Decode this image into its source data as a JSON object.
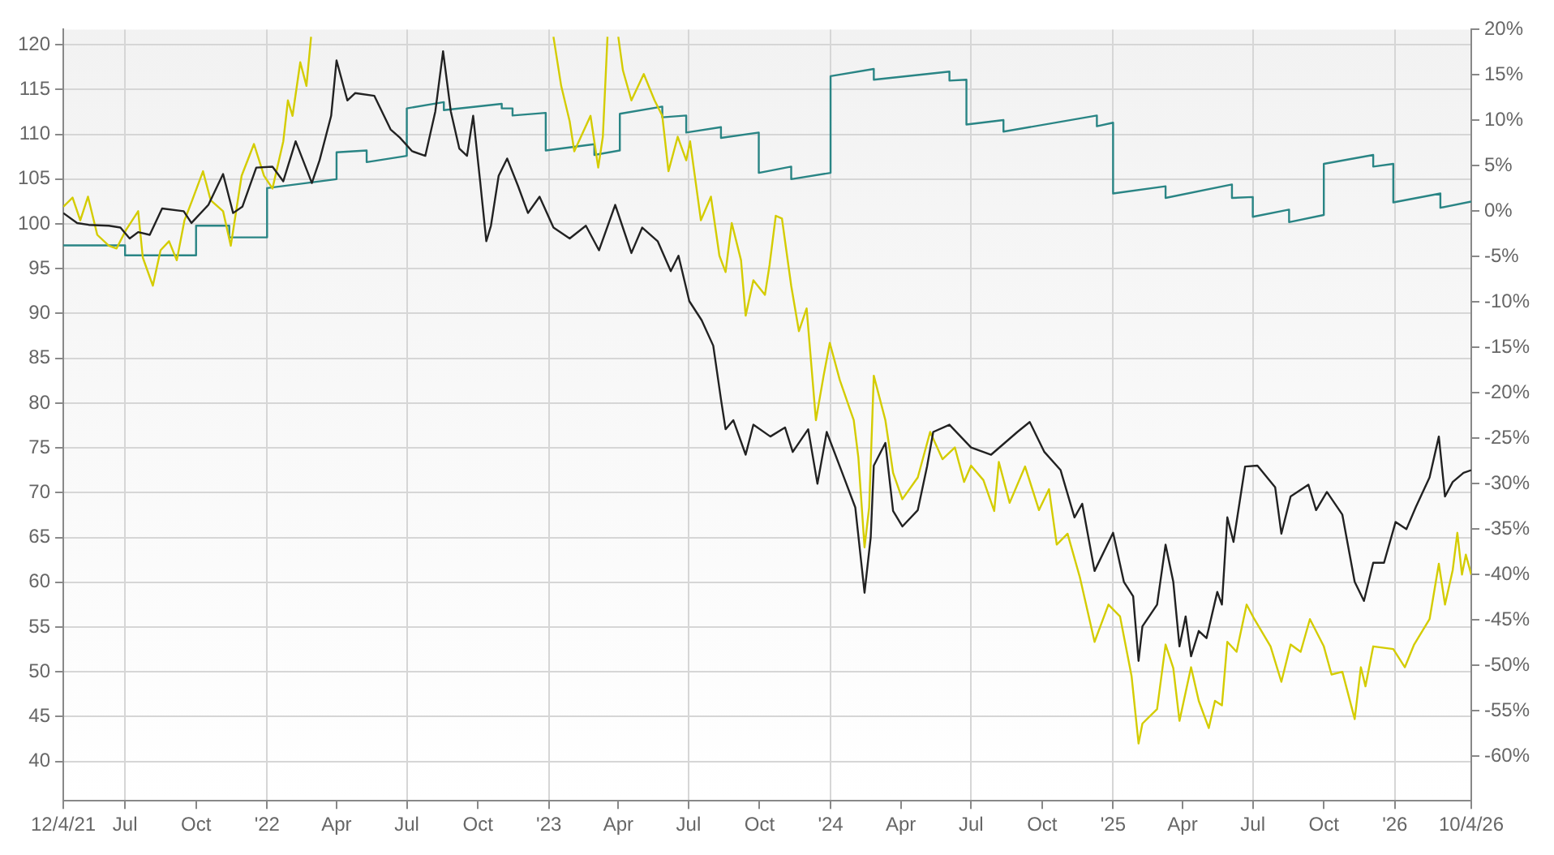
{
  "chart_data": {
    "type": "line",
    "xlim": [
      "2021-04-12",
      "2026-04-10"
    ],
    "xticks": [
      {
        "value": "2021-04-12",
        "label": "12/4/21"
      },
      {
        "value": "2021-07-01",
        "label": "Jul"
      },
      {
        "value": "2021-10-01",
        "label": "Oct"
      },
      {
        "value": "2022-01-01",
        "label": "'22"
      },
      {
        "value": "2022-04-01",
        "label": "Apr"
      },
      {
        "value": "2022-07-01",
        "label": "Jul"
      },
      {
        "value": "2022-10-01",
        "label": "Oct"
      },
      {
        "value": "2023-01-01",
        "label": "'23"
      },
      {
        "value": "2023-04-01",
        "label": "Apr"
      },
      {
        "value": "2023-07-01",
        "label": "Jul"
      },
      {
        "value": "2023-10-01",
        "label": "Oct"
      },
      {
        "value": "2024-01-01",
        "label": "'24"
      },
      {
        "value": "2024-04-01",
        "label": "Apr"
      },
      {
        "value": "2024-07-01",
        "label": "Jul"
      },
      {
        "value": "2024-10-01",
        "label": "Oct"
      },
      {
        "value": "2025-01-01",
        "label": "'25"
      },
      {
        "value": "2025-04-01",
        "label": "Apr"
      },
      {
        "value": "2025-07-01",
        "label": "Jul"
      },
      {
        "value": "2025-10-01",
        "label": "Oct"
      },
      {
        "value": "2026-01-01",
        "label": "'26"
      },
      {
        "value": "2026-04-10",
        "label": "10/4/26"
      }
    ],
    "ylim": [
      35.6,
      121.7
    ],
    "yticks": [
      40,
      45,
      50,
      55,
      60,
      65,
      70,
      75,
      80,
      85,
      90,
      95,
      100,
      105,
      110,
      115,
      120
    ],
    "y2lim": [
      -64.9,
      20
    ],
    "y2ticks": [
      {
        "value": -60,
        "label": "-60%"
      },
      {
        "value": -55,
        "label": "-55%"
      },
      {
        "value": -50,
        "label": "-50%"
      },
      {
        "value": -45,
        "label": "-45%"
      },
      {
        "value": -40,
        "label": "-40%"
      },
      {
        "value": -35,
        "label": "-35%"
      },
      {
        "value": -30,
        "label": "-30%"
      },
      {
        "value": -25,
        "label": "-25%"
      },
      {
        "value": -20,
        "label": "-20%"
      },
      {
        "value": -15,
        "label": "-15%"
      },
      {
        "value": -10,
        "label": "-10%"
      },
      {
        "value": -5,
        "label": "-5%"
      },
      {
        "value": 0,
        "label": "0%"
      },
      {
        "value": 5,
        "label": "5%"
      },
      {
        "value": 10,
        "label": "10%"
      },
      {
        "value": 15,
        "label": "15%"
      },
      {
        "value": 20,
        "label": "20%"
      }
    ],
    "grid": true,
    "legend": false,
    "marker": "none",
    "series": [
      {
        "color": "#2a8585",
        "x": [
          "2021-04-12",
          "2021-07-01",
          "2021-07-01",
          "2021-10-01",
          "2021-10-01",
          "2021-11-13",
          "2021-11-13",
          "2022-01-01",
          "2022-01-01",
          "2022-04-01",
          "2022-04-01",
          "2022-05-10",
          "2022-05-10",
          "2022-07-01",
          "2022-07-01",
          "2022-08-18",
          "2022-08-18",
          "2022-11-01",
          "2022-11-01",
          "2022-11-15",
          "2022-11-15",
          "2022-12-28",
          "2022-12-28",
          "2023-03-01",
          "2023-03-01",
          "2023-04-03",
          "2023-04-03",
          "2023-05-28",
          "2023-05-28",
          "2023-06-28",
          "2023-06-28",
          "2023-08-12",
          "2023-08-12",
          "2023-09-30",
          "2023-09-30",
          "2023-11-11",
          "2023-11-11",
          "2024-01-01",
          "2024-01-01",
          "2024-02-26",
          "2024-02-26",
          "2024-06-03",
          "2024-06-03",
          "2024-06-25",
          "2024-06-25",
          "2024-08-12",
          "2024-08-12",
          "2024-12-11",
          "2024-12-11",
          "2025-01-01",
          "2025-01-01",
          "2025-03-10",
          "2025-03-10",
          "2025-06-04",
          "2025-06-04",
          "2025-07-01",
          "2025-07-01",
          "2025-08-17",
          "2025-08-17",
          "2025-10-01",
          "2025-10-01",
          "2025-12-04",
          "2025-12-04",
          "2025-12-30",
          "2025-12-30",
          "2026-03-01",
          "2026-03-01",
          "2026-04-10"
        ],
        "values": [
          97.6,
          97.6,
          96.5,
          96.5,
          99.8,
          99.8,
          98.5,
          98.5,
          104,
          105,
          108,
          108.2,
          106.9,
          107.6,
          112.9,
          113.6,
          112.7,
          113.4,
          112.9,
          112.9,
          112.1,
          112.4,
          108.2,
          108.9,
          107.7,
          108.2,
          112.3,
          113.1,
          111.9,
          112.1,
          110.2,
          110.8,
          109.6,
          110.2,
          105.7,
          106.4,
          105,
          105.7,
          116.5,
          117.3,
          116.1,
          117,
          116,
          116.1,
          111.1,
          111.6,
          110.3,
          112.1,
          110.9,
          111.3,
          103.4,
          104.2,
          102.9,
          104.4,
          102.9,
          103,
          100.8,
          101.6,
          100.2,
          101,
          106.7,
          107.7,
          106.4,
          106.7,
          102.4,
          103.4,
          101.8,
          102.5
        ]
      },
      {
        "color": "#d4cc00",
        "axis": "y2",
        "x": [
          "2021-04-12",
          "2021-04-24",
          "2021-05-04",
          "2021-05-14",
          "2021-05-26",
          "2021-06-10",
          "2021-06-20",
          "2021-07-02",
          "2021-07-18",
          "2021-07-24",
          "2021-08-06",
          "2021-08-16",
          "2021-08-27",
          "2021-09-06",
          "2021-09-16",
          "2021-09-26",
          "2021-10-10",
          "2021-10-20",
          "2021-11-05",
          "2021-11-15",
          "2021-11-29",
          "2021-12-15",
          "2021-12-28",
          "2022-01-08",
          "2022-01-22",
          "2022-01-28",
          "2022-02-03",
          "2022-02-13",
          "2022-02-21",
          "2022-02-27",
          "2022-08-15",
          "2023-01-07",
          "2023-01-17",
          "2023-01-28",
          "2023-02-03",
          "2023-02-24",
          "2023-03-06",
          "2023-03-12",
          "2023-03-18",
          "2023-03-25",
          "2023-04-01",
          "2023-04-07",
          "2023-04-18",
          "2023-05-04",
          "2023-05-18",
          "2023-05-28",
          "2023-06-05",
          "2023-06-17",
          "2023-06-28",
          "2023-07-03",
          "2023-07-17",
          "2023-07-30",
          "2023-08-10",
          "2023-08-18",
          "2023-08-26",
          "2023-09-07",
          "2023-09-13",
          "2023-09-23",
          "2023-10-08",
          "2023-10-14",
          "2023-10-22",
          "2023-10-30",
          "2023-11-11",
          "2023-11-21",
          "2023-12-01",
          "2023-12-13",
          "2023-12-23",
          "2023-12-31",
          "2024-01-13",
          "2024-01-31",
          "2024-02-06",
          "2024-02-14",
          "2024-02-20",
          "2024-02-26",
          "2024-03-12",
          "2024-03-22",
          "2024-04-03",
          "2024-04-23",
          "2024-05-09",
          "2024-05-25",
          "2024-06-10",
          "2024-06-22",
          "2024-07-01",
          "2024-07-17",
          "2024-07-31",
          "2024-08-06",
          "2024-08-20",
          "2024-09-09",
          "2024-09-27",
          "2024-10-10",
          "2024-10-20",
          "2024-11-03",
          "2024-11-19",
          "2024-12-08",
          "2024-12-26",
          "2025-01-10",
          "2025-01-25",
          "2025-02-03",
          "2025-02-08",
          "2025-02-27",
          "2025-03-10",
          "2025-03-20",
          "2025-03-28",
          "2025-04-12",
          "2025-04-22",
          "2025-05-05",
          "2025-05-13",
          "2025-05-22",
          "2025-05-29",
          "2025-06-10",
          "2025-06-23",
          "2025-07-03",
          "2025-07-24",
          "2025-08-07",
          "2025-08-19",
          "2025-09-01",
          "2025-09-13",
          "2025-10-01",
          "2025-10-11",
          "2025-10-25",
          "2025-11-10",
          "2025-11-18",
          "2025-11-24",
          "2025-12-04",
          "2025-12-30",
          "2026-01-14",
          "2026-01-26",
          "2026-02-15",
          "2026-02-27",
          "2026-03-07",
          "2026-03-17",
          "2026-03-23",
          "2026-03-29",
          "2026-04-03",
          "2026-04-10"
        ],
        "values": [
          0.5,
          1.5,
          -1,
          1.6,
          -2.6,
          -3.8,
          -4.1,
          -2.1,
          0,
          -5.1,
          -8.2,
          -4.3,
          -3.3,
          -5.4,
          -1,
          1.2,
          4.4,
          1.2,
          0,
          -3.8,
          3.9,
          7.4,
          3.9,
          2.5,
          7.7,
          12.2,
          10.5,
          16.4,
          13.8,
          19.2,
          null,
          19.2,
          13.8,
          9.9,
          6.6,
          10.5,
          4.8,
          8.2,
          19.2,
          null,
          19.2,
          15.5,
          12.2,
          15.1,
          12.2,
          10.5,
          4.4,
          8.2,
          5.6,
          7.7,
          -1,
          1.6,
          -4.9,
          -6.7,
          -1.3,
          -5.4,
          -11.5,
          -7.6,
          -9.2,
          -5.9,
          -0.5,
          -0.8,
          -8.2,
          -13.2,
          -10.7,
          -23,
          -18.1,
          -14.5,
          -18.6,
          -23,
          -27.1,
          -37,
          -32.6,
          -18.1,
          -23,
          -28.8,
          -31.7,
          -29.3,
          -24.3,
          -27.3,
          -26,
          -29.8,
          -28,
          -29.6,
          -33,
          -27.6,
          -32.1,
          -28.1,
          -32.9,
          -30.6,
          -36.7,
          -35.5,
          -40.3,
          -47.4,
          -43.3,
          -44.6,
          -51.2,
          -58.6,
          -56.4,
          -54.8,
          -47.7,
          -50.3,
          -56.1,
          -50.2,
          -53.9,
          -56.9,
          -53.9,
          -54.4,
          -47.4,
          -48.5,
          -43.3,
          -44.9,
          -47.9,
          -51.8,
          -47.7,
          -48.5,
          -44.9,
          -47.9,
          -51,
          -50.7,
          -55.9,
          -50.2,
          -52.3,
          -47.9,
          -48.2,
          -50.2,
          -47.7,
          -44.9,
          -38.8,
          -43.3,
          -39.5,
          -35.4,
          -40,
          -37.8,
          -40
        ]
      },
      {
        "color": "#222222",
        "axis": "y2",
        "x": [
          "2021-04-12",
          "2021-04-30",
          "2021-05-15",
          "2021-06-10",
          "2021-06-25",
          "2021-07-07",
          "2021-07-18",
          "2021-08-02",
          "2021-08-18",
          "2021-09-15",
          "2021-09-25",
          "2021-10-17",
          "2021-11-05",
          "2021-11-18",
          "2021-11-30",
          "2021-12-18",
          "2022-01-08",
          "2022-01-22",
          "2022-02-07",
          "2022-02-28",
          "2022-03-10",
          "2022-03-25",
          "2022-04-01",
          "2022-04-15",
          "2022-04-25",
          "2022-05-20",
          "2022-06-10",
          "2022-06-22",
          "2022-07-08",
          "2022-07-25",
          "2022-08-07",
          "2022-08-17",
          "2022-08-27",
          "2022-09-07",
          "2022-09-17",
          "2022-09-25",
          "2022-10-04",
          "2022-10-12",
          "2022-10-18",
          "2022-10-28",
          "2022-11-08",
          "2022-11-22",
          "2022-12-05",
          "2022-12-20",
          "2023-01-07",
          "2023-01-28",
          "2023-02-18",
          "2023-03-07",
          "2023-03-28",
          "2023-04-18",
          "2023-05-02",
          "2023-05-22",
          "2023-06-08",
          "2023-06-18",
          "2023-07-02",
          "2023-07-18",
          "2023-08-02",
          "2023-08-12",
          "2023-08-18",
          "2023-08-28",
          "2023-09-13",
          "2023-09-23",
          "2023-10-15",
          "2023-11-03",
          "2023-11-13",
          "2023-12-03",
          "2023-12-15",
          "2023-12-27",
          "2024-01-17",
          "2024-02-02",
          "2024-02-14",
          "2024-02-22",
          "2024-02-26",
          "2024-03-12",
          "2024-03-22",
          "2024-04-03",
          "2024-04-23",
          "2024-05-05",
          "2024-05-13",
          "2024-06-03",
          "2024-07-01",
          "2024-07-27",
          "2024-08-30",
          "2024-09-15",
          "2024-10-04",
          "2024-10-25",
          "2024-11-12",
          "2024-11-22",
          "2024-12-08",
          "2025-01-01",
          "2025-01-15",
          "2025-01-27",
          "2025-02-03",
          "2025-02-08",
          "2025-02-27",
          "2025-03-10",
          "2025-03-20",
          "2025-03-28",
          "2025-04-05",
          "2025-04-12",
          "2025-04-22",
          "2025-05-02",
          "2025-05-16",
          "2025-05-22",
          "2025-05-29",
          "2025-06-06",
          "2025-06-21",
          "2025-07-07",
          "2025-07-30",
          "2025-08-07",
          "2025-08-19",
          "2025-09-11",
          "2025-09-21",
          "2025-10-05",
          "2025-10-25",
          "2025-11-10",
          "2025-11-22",
          "2025-12-04",
          "2025-12-18",
          "2026-01-02",
          "2026-01-16",
          "2026-01-28",
          "2026-02-15",
          "2026-02-27",
          "2026-03-07",
          "2026-03-17",
          "2026-03-31",
          "2026-04-10"
        ],
        "values": [
          -0.2,
          -1.3,
          -1.5,
          -1.6,
          -1.8,
          -3,
          -2.3,
          -2.6,
          0.3,
          0,
          -1.3,
          0.7,
          4.1,
          -0.2,
          0.5,
          4.8,
          4.9,
          3.3,
          7.7,
          3.1,
          5.6,
          10.5,
          16.6,
          12.2,
          13,
          12.7,
          9,
          8.1,
          6.6,
          6.1,
          11,
          17.6,
          11,
          6.9,
          6.1,
          10.5,
          3.3,
          -3.3,
          -1.6,
          3.9,
          5.8,
          2.8,
          -0.2,
          1.6,
          -1.8,
          -3,
          -1.6,
          -4.3,
          0.7,
          -4.6,
          -1.8,
          -3.3,
          -6.6,
          -4.9,
          -9.9,
          -12,
          -14.8,
          -20.7,
          -24,
          -23,
          -26.8,
          -23.5,
          -24.8,
          -23.8,
          -26.5,
          -24,
          -30,
          -24.3,
          -29,
          -32.6,
          -42,
          -35.9,
          -28,
          -25.5,
          -33,
          -34.7,
          -32.9,
          -28.1,
          -24.3,
          -23.5,
          -26,
          -26.8,
          -24.3,
          -23.2,
          -26.5,
          -28.5,
          -33.7,
          -32.2,
          -39.6,
          -35.4,
          -40.8,
          -42.4,
          -49.5,
          -45.7,
          -43.3,
          -36.7,
          -40.8,
          -47.9,
          -44.6,
          -49,
          -46.2,
          -47,
          -41.9,
          -43.3,
          -33.7,
          -36.4,
          -28.1,
          -28,
          -30.4,
          -35.5,
          -31.4,
          -30.1,
          -32.9,
          -30.9,
          -33.4,
          -40.8,
          -42.9,
          -38.7,
          -38.7,
          -34.2,
          -35,
          -32.6,
          -29.3,
          -24.8,
          -31.4,
          -29.8,
          -28.8,
          -28.5
        ]
      }
    ]
  }
}
